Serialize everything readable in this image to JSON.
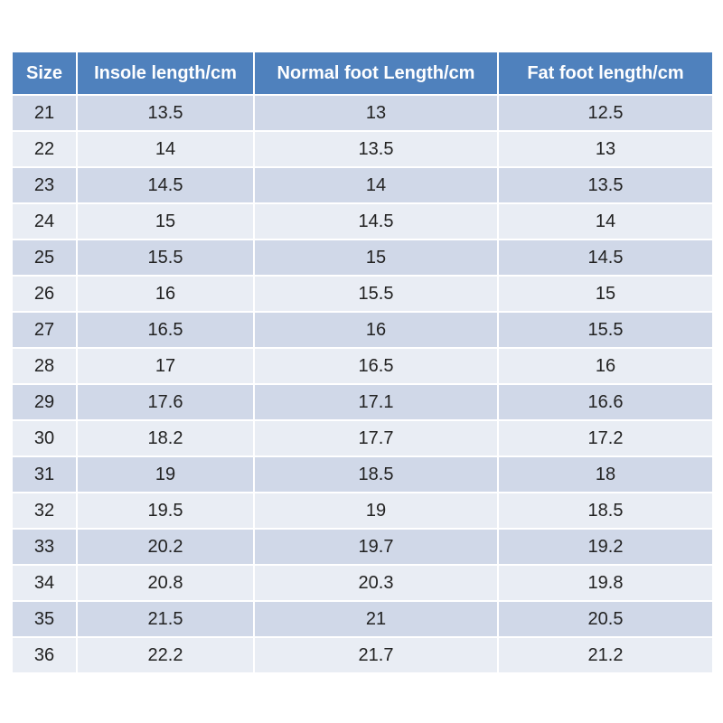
{
  "table": {
    "header": [
      "Size",
      "Insole length/cm",
      "Normal foot Length/cm",
      "Fat foot length/cm"
    ],
    "rows": [
      [
        "21",
        "13.5",
        "13",
        "12.5"
      ],
      [
        "22",
        "14",
        "13.5",
        "13"
      ],
      [
        "23",
        "14.5",
        "14",
        "13.5"
      ],
      [
        "24",
        "15",
        "14.5",
        "14"
      ],
      [
        "25",
        "15.5",
        "15",
        "14.5"
      ],
      [
        "26",
        "16",
        "15.5",
        "15"
      ],
      [
        "27",
        "16.5",
        "16",
        "15.5"
      ],
      [
        "28",
        "17",
        "16.5",
        "16"
      ],
      [
        "29",
        "17.6",
        "17.1",
        "16.6"
      ],
      [
        "30",
        "18.2",
        "17.7",
        "17.2"
      ],
      [
        "31",
        "19",
        "18.5",
        "18"
      ],
      [
        "32",
        "19.5",
        "19",
        "18.5"
      ],
      [
        "33",
        "20.2",
        "19.7",
        "19.2"
      ],
      [
        "34",
        "20.8",
        "20.3",
        "19.8"
      ],
      [
        "35",
        "21.5",
        "21",
        "20.5"
      ],
      [
        "36",
        "22.2",
        "21.7",
        "21.2"
      ]
    ]
  }
}
